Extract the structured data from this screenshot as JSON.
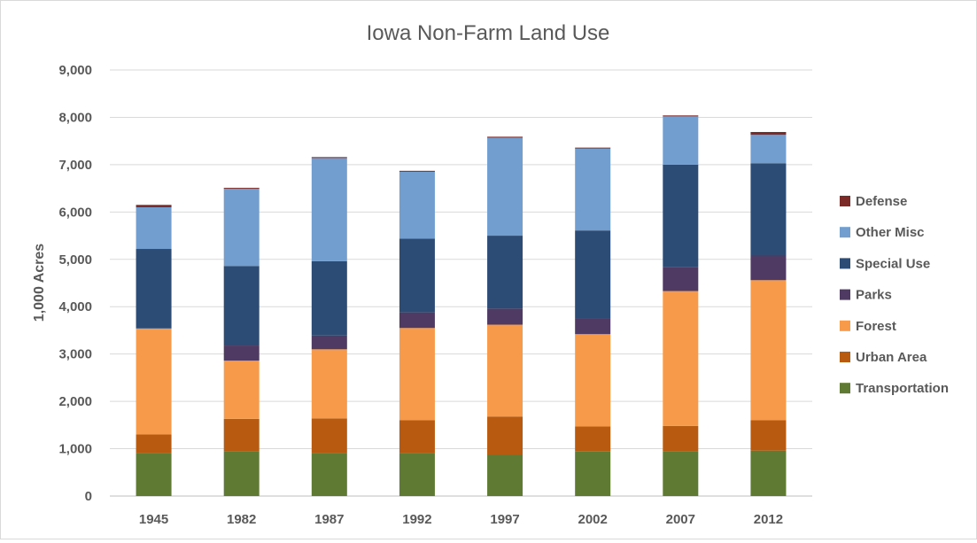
{
  "chart_data": {
    "type": "bar",
    "stacked": true,
    "title": "Iowa Non-Farm Land Use",
    "xlabel": "",
    "ylabel": "1,000 Acres",
    "ylim": [
      0,
      9000
    ],
    "yticks": [
      0,
      1000,
      2000,
      3000,
      4000,
      5000,
      6000,
      7000,
      8000,
      9000
    ],
    "ytick_labels": [
      "0",
      "1,000",
      "2,000",
      "3,000",
      "4,000",
      "5,000",
      "6,000",
      "7,000",
      "8,000",
      "9,000"
    ],
    "grid": true,
    "legend_position": "right",
    "categories": [
      "1945",
      "1982",
      "1987",
      "1992",
      "1997",
      "2002",
      "2007",
      "2012"
    ],
    "series": [
      {
        "name": "Transportation",
        "color": "#5e7a33",
        "values": [
          900,
          950,
          900,
          900,
          870,
          940,
          950,
          960
        ]
      },
      {
        "name": "Urban Area",
        "color": "#b85a0f",
        "values": [
          400,
          680,
          740,
          700,
          810,
          530,
          530,
          640
        ]
      },
      {
        "name": "Forest",
        "color": "#f79a4a",
        "values": [
          2240,
          1230,
          1460,
          1950,
          1940,
          1950,
          2850,
          2960
        ]
      },
      {
        "name": "Parks",
        "color": "#4e3a62",
        "values": [
          0,
          320,
          290,
          330,
          340,
          340,
          510,
          520
        ]
      },
      {
        "name": "Special Use",
        "color": "#2d4c75",
        "values": [
          1680,
          1680,
          1570,
          1560,
          1540,
          1850,
          2160,
          1950
        ]
      },
      {
        "name": "Other Misc",
        "color": "#729ecf",
        "values": [
          880,
          1630,
          2180,
          1410,
          2070,
          1730,
          1020,
          600
        ]
      },
      {
        "name": "Defense",
        "color": "#7b2a28",
        "values": [
          50,
          20,
          20,
          20,
          20,
          20,
          20,
          60
        ]
      }
    ]
  }
}
